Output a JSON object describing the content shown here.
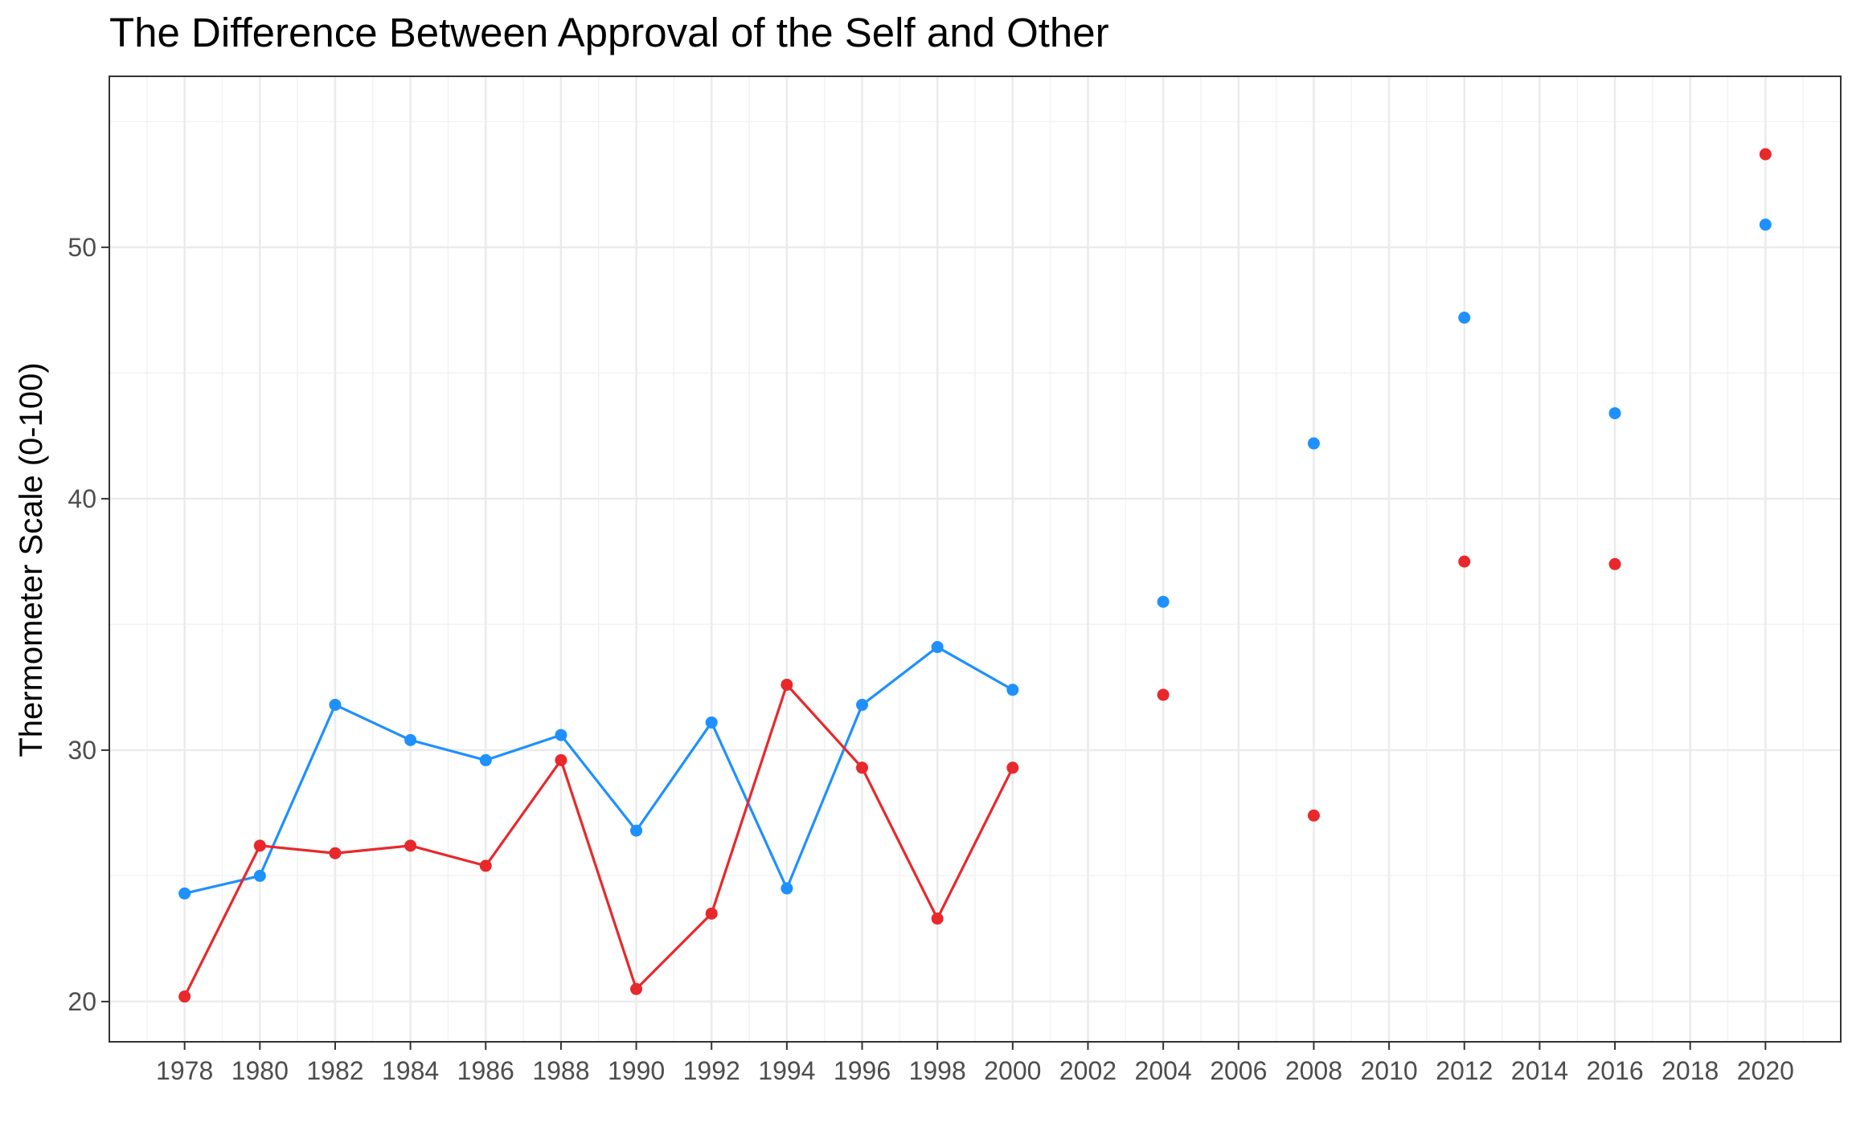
{
  "chart_data": {
    "type": "line",
    "title": "The Difference Between Approval of the Self and Other",
    "xlabel": "",
    "ylabel": "Thermometer Scale (0-100)",
    "x": [
      1978,
      1980,
      1982,
      1984,
      1986,
      1988,
      1990,
      1992,
      1994,
      1996,
      1998,
      2000,
      2002,
      2004,
      2006,
      2008,
      2010,
      2012,
      2014,
      2016,
      2018,
      2020
    ],
    "xlim": [
      1976,
      2022
    ],
    "ylim": [
      18.4,
      56.8
    ],
    "x_ticks": [
      "1978",
      "1980",
      "1982",
      "1984",
      "1986",
      "1988",
      "1990",
      "1992",
      "1994",
      "1996",
      "1998",
      "2000",
      "2002",
      "2004",
      "2006",
      "2008",
      "2010",
      "2012",
      "2014",
      "2016",
      "2018",
      "2020"
    ],
    "y_ticks": [
      "20",
      "30",
      "40",
      "50"
    ],
    "grid": true,
    "legend": "none",
    "series": [
      {
        "color": "#1E90FF",
        "values": [
          24.3,
          25.0,
          31.8,
          30.4,
          29.6,
          30.6,
          26.8,
          31.1,
          24.5,
          31.8,
          34.1,
          32.4,
          null,
          35.9,
          null,
          42.2,
          null,
          47.2,
          null,
          43.4,
          null,
          50.9
        ]
      },
      {
        "color": "#E8282B",
        "values": [
          20.2,
          26.2,
          25.9,
          26.2,
          25.4,
          29.6,
          20.5,
          23.5,
          32.6,
          29.3,
          23.3,
          29.3,
          null,
          32.2,
          null,
          27.4,
          null,
          37.5,
          null,
          37.4,
          null,
          53.7
        ]
      }
    ]
  }
}
